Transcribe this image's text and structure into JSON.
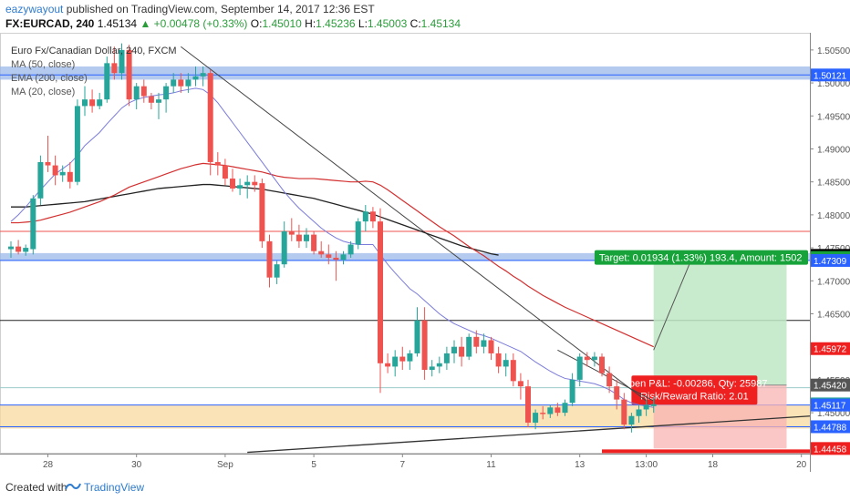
{
  "header": {
    "author": "eazywayout",
    "published": "published on TradingView.com, September 14, 2017 12:36 EST",
    "symbol": "FX:EURCAD, 240",
    "last": "1.45134",
    "change_arrow": "▲",
    "change": "+0.00478 (+0.33%)",
    "o_label": "O:",
    "o_value": "1.45010",
    "h_label": "H:",
    "h_value": "1.45236",
    "l_label": "L:",
    "l_value": "1.45003",
    "c_label": "C:",
    "c_value": "1.45134"
  },
  "legend": {
    "title": "Euro Fx/Canadian Dollar, 240, FXCM",
    "ma50": "MA (50, close)",
    "ema200": "EMA (200, close)",
    "ma20": "MA (20, close)"
  },
  "footer": {
    "created": "Created with",
    "brand": "TradingView"
  },
  "colors": {
    "up": "#26a69a",
    "down": "#ef5350",
    "ma20": "#7b7bdb",
    "ma50": "#d32f2f",
    "ema200": "#222222",
    "zone_blue": "#9bb8ea",
    "zone_orange": "#f9d9a0",
    "target_green": "#18a33a",
    "stop_red": "#ef2020",
    "accent": "#2e7bcf"
  },
  "chart_data": {
    "type": "candlestick",
    "title": "Euro Fx/Canadian Dollar, 240, FXCM",
    "ylim": [
      1.4438,
      1.5065
    ],
    "y_ticks": [
      "1.50500",
      "1.50000",
      "1.49500",
      "1.49000",
      "1.48500",
      "1.48000",
      "1.47500",
      "1.47000",
      "1.46500",
      "1.46000",
      "1.45500",
      "1.45000",
      "1.44500"
    ],
    "x_ticks": [
      {
        "label": "28",
        "i": 5
      },
      {
        "label": "30",
        "i": 17
      },
      {
        "label": "Sep",
        "i": 29
      },
      {
        "label": "5",
        "i": 41
      },
      {
        "label": "7",
        "i": 53
      },
      {
        "label": "11",
        "i": 65
      },
      {
        "label": "13",
        "i": 77
      },
      {
        "label": "13:00",
        "i": 86
      },
      {
        "label": "18",
        "i": 95
      },
      {
        "label": "20",
        "i": 107
      }
    ],
    "price_labels": [
      {
        "text": "1.50121",
        "value": 1.50121,
        "bg": "#2962ff",
        "fg": "#ffffff"
      },
      {
        "text": "1.47386",
        "value": 1.47386,
        "bg": "#000000",
        "fg": "#ffffff"
      },
      {
        "text": "1.47354",
        "value": 1.47354,
        "bg": "#18a33a",
        "fg": "#ffffff"
      },
      {
        "text": "1.47309",
        "value": 1.47309,
        "bg": "#2962ff",
        "fg": "#ffffff"
      },
      {
        "text": "1.45972",
        "value": 1.45972,
        "bg": "#ef2020",
        "fg": "#ffffff"
      },
      {
        "text": "1.45420",
        "value": 1.4542,
        "bg": "#555555",
        "fg": "#ffffff"
      },
      {
        "text": "1.45134",
        "value": 1.45134,
        "bg": "#26a69a",
        "fg": "#ffffff"
      },
      {
        "text": "1.45117",
        "value": 1.45117,
        "bg": "#2962ff",
        "fg": "#ffffff"
      },
      {
        "text": "1.44788",
        "value": 1.44788,
        "bg": "#2962ff",
        "fg": "#ffffff"
      },
      {
        "text": "1.44458",
        "value": 1.44458,
        "bg": "#ef2020",
        "fg": "#ffffff"
      }
    ],
    "zones": [
      {
        "name": "resistance-zone-upper",
        "from": 1.5005,
        "to": 1.5025,
        "color": "#9bb8ea"
      },
      {
        "name": "resistance-zone-middle",
        "from": 1.473,
        "to": 1.4742,
        "color": "#9bb8ea"
      },
      {
        "name": "support-zone-lower",
        "from": 1.4476,
        "to": 1.4512,
        "color": "#f9d9a0"
      }
    ],
    "hlines": [
      {
        "value": 1.50121,
        "color": "#2962ff"
      },
      {
        "value": 1.4775,
        "color": "#ef5350"
      },
      {
        "value": 1.47309,
        "color": "#2962ff"
      },
      {
        "value": 1.464,
        "color": "#222222"
      },
      {
        "value": 1.45117,
        "color": "#2962ff"
      },
      {
        "value": 1.44788,
        "color": "#2962ff"
      },
      {
        "value": 1.4538,
        "color": "#9cc"
      }
    ],
    "position": {
      "entry": 1.4542,
      "target": 1.47354,
      "stop": 1.44458,
      "from_i": 87,
      "to_i": 105,
      "target_label": "Target: 0.01934 (1.33%) 193.4, Amount: 1502",
      "pnl_label": "Open P&L: -0.00286, Qty: 25987",
      "rr_label": "Risk/Reward Ratio: 2.01"
    },
    "candles": [
      [
        1.4748,
        1.476,
        1.4735,
        1.4752
      ],
      [
        1.4752,
        1.4762,
        1.474,
        1.4744
      ],
      [
        1.4744,
        1.4755,
        1.4738,
        1.475
      ],
      [
        1.4748,
        1.483,
        1.474,
        1.4825
      ],
      [
        1.4825,
        1.489,
        1.4815,
        1.488
      ],
      [
        1.488,
        1.492,
        1.4865,
        1.4875
      ],
      [
        1.4875,
        1.489,
        1.4845,
        1.486
      ],
      [
        1.486,
        1.4875,
        1.485,
        1.4865
      ],
      [
        1.4865,
        1.488,
        1.484,
        1.485
      ],
      [
        1.485,
        1.4975,
        1.4845,
        1.4965
      ],
      [
        1.4965,
        1.4995,
        1.495,
        1.4975
      ],
      [
        1.4975,
        1.499,
        1.4955,
        1.4965
      ],
      [
        1.4965,
        1.4985,
        1.496,
        1.4975
      ],
      [
        1.4975,
        1.504,
        1.497,
        1.503
      ],
      [
        1.503,
        1.5055,
        1.5005,
        1.5015
      ],
      [
        1.5015,
        1.506,
        1.5005,
        1.505
      ],
      [
        1.505,
        1.5058,
        1.4965,
        1.4975
      ],
      [
        1.4975,
        1.5,
        1.496,
        1.4995
      ],
      [
        1.4995,
        1.5005,
        1.497,
        1.498
      ],
      [
        1.498,
        1.4985,
        1.496,
        1.497
      ],
      [
        1.497,
        1.4985,
        1.4945,
        1.4975
      ],
      [
        1.4975,
        1.5,
        1.4955,
        1.4995
      ],
      [
        1.4995,
        1.5015,
        1.4985,
        1.5005
      ],
      [
        1.5005,
        1.5015,
        1.4985,
        1.4995
      ],
      [
        1.4995,
        1.5015,
        1.4985,
        1.5005
      ],
      [
        1.5005,
        1.5025,
        1.4995,
        1.501
      ],
      [
        1.501,
        1.5025,
        1.4995,
        1.5015
      ],
      [
        1.5015,
        1.502,
        1.486,
        1.488
      ],
      [
        1.488,
        1.4895,
        1.486,
        1.4875
      ],
      [
        1.4875,
        1.4885,
        1.4845,
        1.4855
      ],
      [
        1.4855,
        1.487,
        1.4835,
        1.484
      ],
      [
        1.484,
        1.4855,
        1.483,
        1.4845
      ],
      [
        1.4845,
        1.486,
        1.4825,
        1.485
      ],
      [
        1.485,
        1.486,
        1.4835,
        1.4845
      ],
      [
        1.4848,
        1.4855,
        1.475,
        1.476
      ],
      [
        1.476,
        1.477,
        1.469,
        1.4705
      ],
      [
        1.4705,
        1.473,
        1.4695,
        1.4725
      ],
      [
        1.4725,
        1.479,
        1.472,
        1.4775
      ],
      [
        1.4775,
        1.4795,
        1.476,
        1.477
      ],
      [
        1.477,
        1.4785,
        1.475,
        1.476
      ],
      [
        1.476,
        1.478,
        1.475,
        1.477
      ],
      [
        1.477,
        1.4775,
        1.474,
        1.4745
      ],
      [
        1.4745,
        1.476,
        1.4735,
        1.474
      ],
      [
        1.474,
        1.4755,
        1.4725,
        1.4735
      ],
      [
        1.4735,
        1.4745,
        1.47,
        1.4732
      ],
      [
        1.4732,
        1.4745,
        1.4725,
        1.474
      ],
      [
        1.474,
        1.476,
        1.4735,
        1.4755
      ],
      [
        1.4755,
        1.4795,
        1.4748,
        1.479
      ],
      [
        1.479,
        1.4815,
        1.4775,
        1.4805
      ],
      [
        1.4805,
        1.4812,
        1.478,
        1.479
      ],
      [
        1.479,
        1.481,
        1.453,
        1.4575
      ],
      [
        1.4575,
        1.459,
        1.456,
        1.457
      ],
      [
        1.457,
        1.4595,
        1.4555,
        1.4585
      ],
      [
        1.4585,
        1.46,
        1.4565,
        1.4578
      ],
      [
        1.4578,
        1.4595,
        1.4565,
        1.459
      ],
      [
        1.459,
        1.466,
        1.4585,
        1.464
      ],
      [
        1.464,
        1.466,
        1.455,
        1.4565
      ],
      [
        1.4565,
        1.458,
        1.4555,
        1.457
      ],
      [
        1.457,
        1.4585,
        1.456,
        1.4575
      ],
      [
        1.4575,
        1.46,
        1.4565,
        1.459
      ],
      [
        1.459,
        1.461,
        1.4575,
        1.46
      ],
      [
        1.46,
        1.4615,
        1.457,
        1.4585
      ],
      [
        1.4585,
        1.462,
        1.458,
        1.4615
      ],
      [
        1.4615,
        1.4625,
        1.459,
        1.46
      ],
      [
        1.46,
        1.462,
        1.459,
        1.461
      ],
      [
        1.461,
        1.4615,
        1.458,
        1.459
      ],
      [
        1.459,
        1.46,
        1.456,
        1.457
      ],
      [
        1.457,
        1.459,
        1.4555,
        1.458
      ],
      [
        1.458,
        1.459,
        1.454,
        1.4548
      ],
      [
        1.4548,
        1.456,
        1.452,
        1.454
      ],
      [
        1.454,
        1.455,
        1.4478,
        1.4485
      ],
      [
        1.4485,
        1.4505,
        1.4475,
        1.45
      ],
      [
        1.45,
        1.451,
        1.449,
        1.4498
      ],
      [
        1.4498,
        1.4512,
        1.4492,
        1.4508
      ],
      [
        1.4508,
        1.4515,
        1.4495,
        1.45
      ],
      [
        1.45,
        1.452,
        1.4495,
        1.4515
      ],
      [
        1.4515,
        1.456,
        1.451,
        1.455
      ],
      [
        1.455,
        1.459,
        1.454,
        1.4585
      ],
      [
        1.4585,
        1.4592,
        1.457,
        1.458
      ],
      [
        1.458,
        1.4592,
        1.457,
        1.4585
      ],
      [
        1.4585,
        1.459,
        1.4555,
        1.456
      ],
      [
        1.456,
        1.457,
        1.453,
        1.454
      ],
      [
        1.454,
        1.455,
        1.4505,
        1.452
      ],
      [
        1.452,
        1.453,
        1.4475,
        1.4482
      ],
      [
        1.4482,
        1.45,
        1.447,
        1.4495
      ],
      [
        1.4495,
        1.4512,
        1.4485,
        1.4505
      ],
      [
        1.4505,
        1.452,
        1.4495,
        1.4512
      ],
      [
        1.451,
        1.4524,
        1.45,
        1.4513
      ]
    ],
    "ma20": [
      1.479,
      1.48,
      1.4812,
      1.4825,
      1.4838,
      1.485,
      1.4862,
      1.487,
      1.4878,
      1.489,
      1.4905,
      1.4915,
      1.4925,
      1.4938,
      1.495,
      1.4962,
      1.497,
      1.4975,
      1.4978,
      1.498,
      1.4982,
      1.4983,
      1.4985,
      1.4988,
      1.499,
      1.4992,
      1.499,
      1.4982,
      1.497,
      1.4955,
      1.494,
      1.4925,
      1.491,
      1.4895,
      1.488,
      1.4865,
      1.485,
      1.4835,
      1.4822,
      1.481,
      1.48,
      1.479,
      1.478,
      1.4772,
      1.4765,
      1.476,
      1.4757,
      1.4755,
      1.4755,
      1.4755,
      1.474,
      1.4725,
      1.4712,
      1.47,
      1.4688,
      1.468,
      1.467,
      1.466,
      1.465,
      1.4642,
      1.4635,
      1.463,
      1.4625,
      1.462,
      1.4617,
      1.4613,
      1.4608,
      1.4603,
      1.4598,
      1.4593,
      1.4585,
      1.4577,
      1.457,
      1.4563,
      1.4557,
      1.4552,
      1.455,
      1.4548,
      1.4546,
      1.4544,
      1.454,
      1.4535,
      1.4528,
      1.452,
      1.4515,
      1.4512,
      1.451,
      1.4508
    ],
    "ma50": [
      1.4788,
      1.4788,
      1.4789,
      1.479,
      1.4792,
      1.4795,
      1.4798,
      1.4801,
      1.4804,
      1.4808,
      1.4812,
      1.4816,
      1.482,
      1.4825,
      1.483,
      1.4836,
      1.4842,
      1.4846,
      1.485,
      1.4854,
      1.4858,
      1.4862,
      1.4866,
      1.487,
      1.4873,
      1.4876,
      1.4878,
      1.4877,
      1.4876,
      1.4875,
      1.4873,
      1.4871,
      1.4869,
      1.4867,
      1.4865,
      1.4862,
      1.4859,
      1.4857,
      1.4856,
      1.4855,
      1.4855,
      1.4855,
      1.4854,
      1.4853,
      1.4852,
      1.4851,
      1.485,
      1.485,
      1.4851,
      1.485,
      1.4845,
      1.4838,
      1.483,
      1.4822,
      1.4814,
      1.4806,
      1.4798,
      1.479,
      1.4782,
      1.4775,
      1.4768,
      1.476,
      1.4752,
      1.4745,
      1.4738,
      1.473,
      1.4722,
      1.4715,
      1.4707,
      1.47,
      1.4692,
      1.4685,
      1.4678,
      1.4672,
      1.4666,
      1.466,
      1.4655,
      1.465,
      1.4645,
      1.464,
      1.4635,
      1.463,
      1.4625,
      1.462,
      1.4615,
      1.461,
      1.4605,
      1.46
    ],
    "ema200": [
      1.4812,
      1.4812,
      1.4812,
      1.4813,
      1.4814,
      1.4815,
      1.4816,
      1.4817,
      1.4818,
      1.4819,
      1.482,
      1.4822,
      1.4824,
      1.4826,
      1.4828,
      1.483,
      1.4832,
      1.4834,
      1.4836,
      1.4838,
      1.484,
      1.4841,
      1.4842,
      1.4843,
      1.4844,
      1.4845,
      1.4846,
      1.4846,
      1.4845,
      1.4844,
      1.4843,
      1.4842,
      1.4841,
      1.484,
      1.4839,
      1.4837,
      1.4835,
      1.4833,
      1.4831,
      1.4829,
      1.4827,
      1.4825,
      1.4822,
      1.4819,
      1.4816,
      1.4813,
      1.481,
      1.4807,
      1.4804,
      1.4801,
      1.4797,
      1.4793,
      1.4789,
      1.4785,
      1.4781,
      1.4777,
      1.4773,
      1.4769,
      1.4765,
      1.4761,
      1.4757,
      1.4753,
      1.475,
      1.4747,
      1.4744,
      1.4741,
      1.4739
    ]
  }
}
